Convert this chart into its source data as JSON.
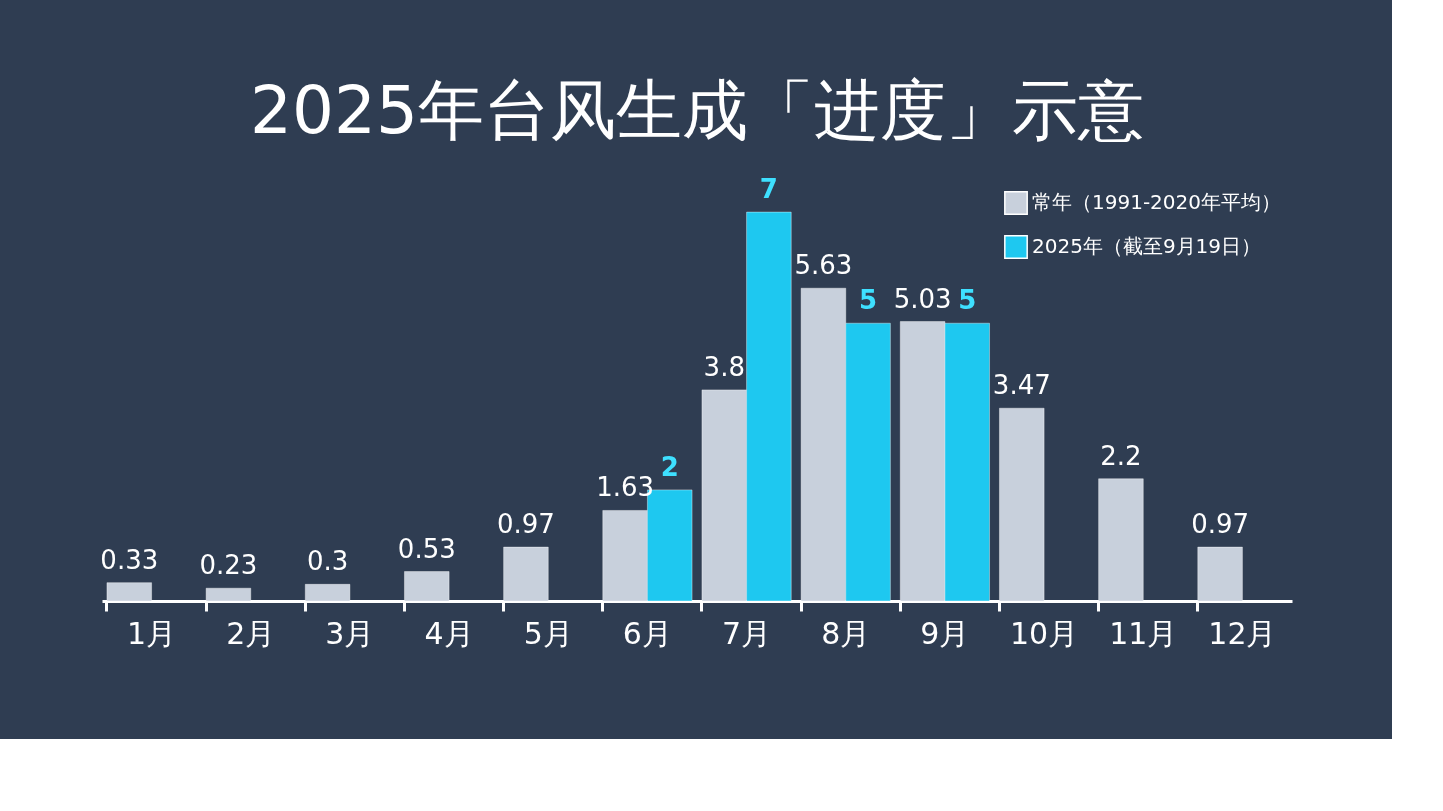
{
  "chart_data": {
    "type": "bar",
    "title": "2025年台风生成「进度」示意",
    "categories": [
      "1月",
      "2月",
      "3月",
      "4月",
      "5月",
      "6月",
      "7月",
      "8月",
      "9月",
      "10月",
      "11月",
      "12月"
    ],
    "series": [
      {
        "name": "常年（1991-2020年平均）",
        "color": "#c8d0dc",
        "values": [
          0.33,
          0.23,
          0.3,
          0.53,
          0.97,
          1.63,
          3.8,
          5.63,
          5.03,
          3.47,
          2.2,
          0.97
        ]
      },
      {
        "name": "2025年（截至9月19日）",
        "color": "#1ec8f0",
        "values": [
          null,
          null,
          null,
          null,
          null,
          2,
          7,
          5,
          5,
          null,
          null,
          null
        ]
      }
    ],
    "data_labels": true,
    "legend": "top right",
    "grid": false
  }
}
